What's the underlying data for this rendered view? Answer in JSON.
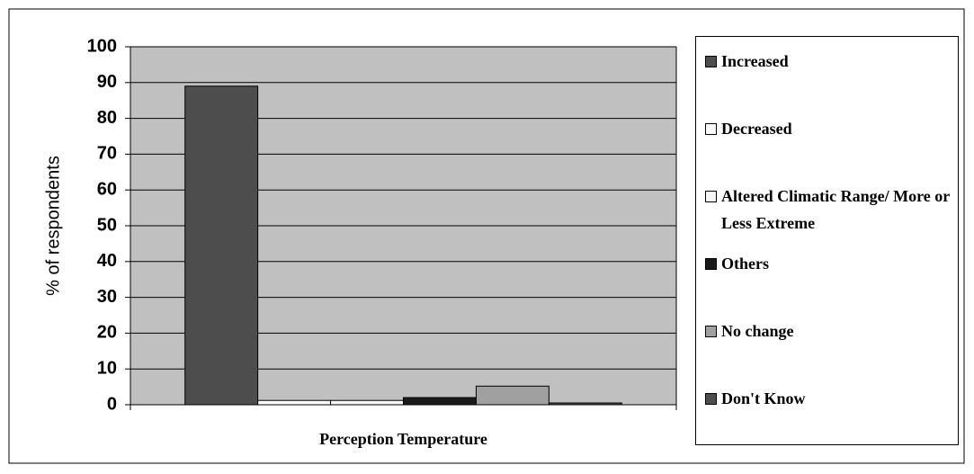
{
  "chart_data": {
    "type": "bar",
    "categories": [
      "Perception Temperature"
    ],
    "series": [
      {
        "name": "Increased",
        "color": "#4d4d4d",
        "values": [
          89
        ]
      },
      {
        "name": "Decreased",
        "color": "#ffffff",
        "values": [
          1.2
        ]
      },
      {
        "name": "Altered Climatic Range/ More or Less Extreme",
        "color": "#f7f7f7",
        "values": [
          1.2
        ]
      },
      {
        "name": "Others",
        "color": "#1a1a1a",
        "values": [
          2
        ]
      },
      {
        "name": "No change",
        "color": "#a0a0a0",
        "values": [
          5.2
        ]
      },
      {
        "name": "Don't Know",
        "color": "#4d4d4d",
        "values": [
          0.5
        ]
      }
    ],
    "y_label": "% of respondents",
    "ylim": [
      0,
      100
    ],
    "yticks": [
      0,
      10,
      20,
      30,
      40,
      50,
      60,
      70,
      80,
      90,
      100
    ],
    "grid": true,
    "legend": "right"
  }
}
